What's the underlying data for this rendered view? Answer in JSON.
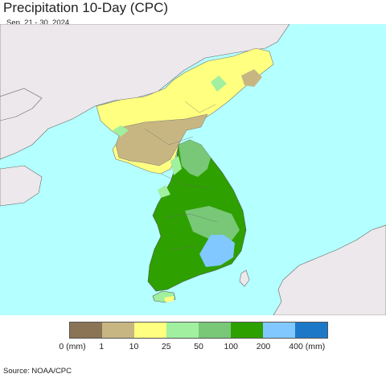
{
  "title": "Precipitation 10-Day (CPC)",
  "subtitle": "Sep. 21 - 30, 2024",
  "legend": {
    "colors": [
      "#8b7355",
      "#c8b682",
      "#ffff80",
      "#a0f0a0",
      "#78c878",
      "#2ea000",
      "#80c8ff",
      "#1e78c8"
    ],
    "labels": [
      "0 (mm)",
      "1",
      "10",
      "25",
      "50",
      "100",
      "200",
      "400 (mm)"
    ]
  },
  "source": "Source: NOAA/CPC",
  "map_colors": {
    "sea": "#b4ffff",
    "foreign_land": "#ede8ec"
  }
}
